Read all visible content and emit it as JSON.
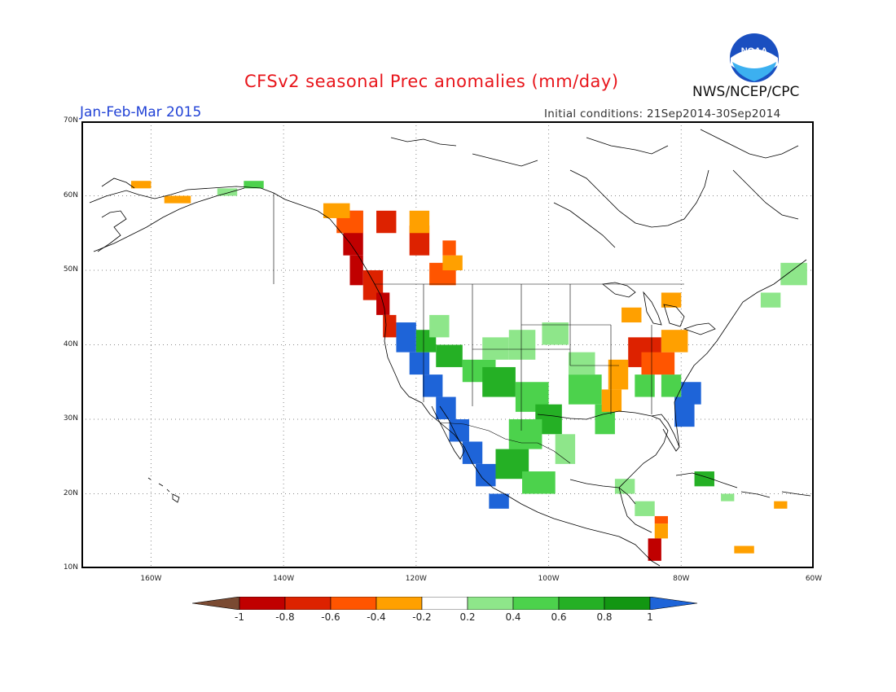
{
  "title": "CFSv2 seasonal Prec anomalies (mm/day)",
  "period": "Jan-Feb-Mar 2015",
  "initial_conditions": "Initial conditions: 21Sep2014-30Sep2014",
  "agency": "NWS/NCEP/CPC",
  "logo_text": "NOAA",
  "lat_labels": [
    {
      "text": "70N",
      "lat": 70
    },
    {
      "text": "60N",
      "lat": 60
    },
    {
      "text": "50N",
      "lat": 50
    },
    {
      "text": "40N",
      "lat": 40
    },
    {
      "text": "30N",
      "lat": 30
    },
    {
      "text": "20N",
      "lat": 20
    },
    {
      "text": "10N",
      "lat": 10
    }
  ],
  "lon_labels": [
    {
      "text": "160W",
      "lon": -160
    },
    {
      "text": "140W",
      "lon": -140
    },
    {
      "text": "120W",
      "lon": -120
    },
    {
      "text": "100W",
      "lon": -100
    },
    {
      "text": "80W",
      "lon": -80
    },
    {
      "text": "60W",
      "lon": -60
    }
  ],
  "colorbar": {
    "labels": [
      "-1",
      "-0.8",
      "-0.6",
      "-0.4",
      "-0.2",
      "0.2",
      "0.4",
      "0.6",
      "0.8",
      "1"
    ],
    "colors": [
      "#7a4a32",
      "#c00000",
      "#dd2200",
      "#ff5500",
      "#ffa000",
      "#ffffff",
      "#8ee68a",
      "#4cd24c",
      "#25b025",
      "#129612",
      "#1e64d8"
    ]
  },
  "map_colors": {
    "land_outline": "#000000",
    "grid": "#888888"
  }
}
